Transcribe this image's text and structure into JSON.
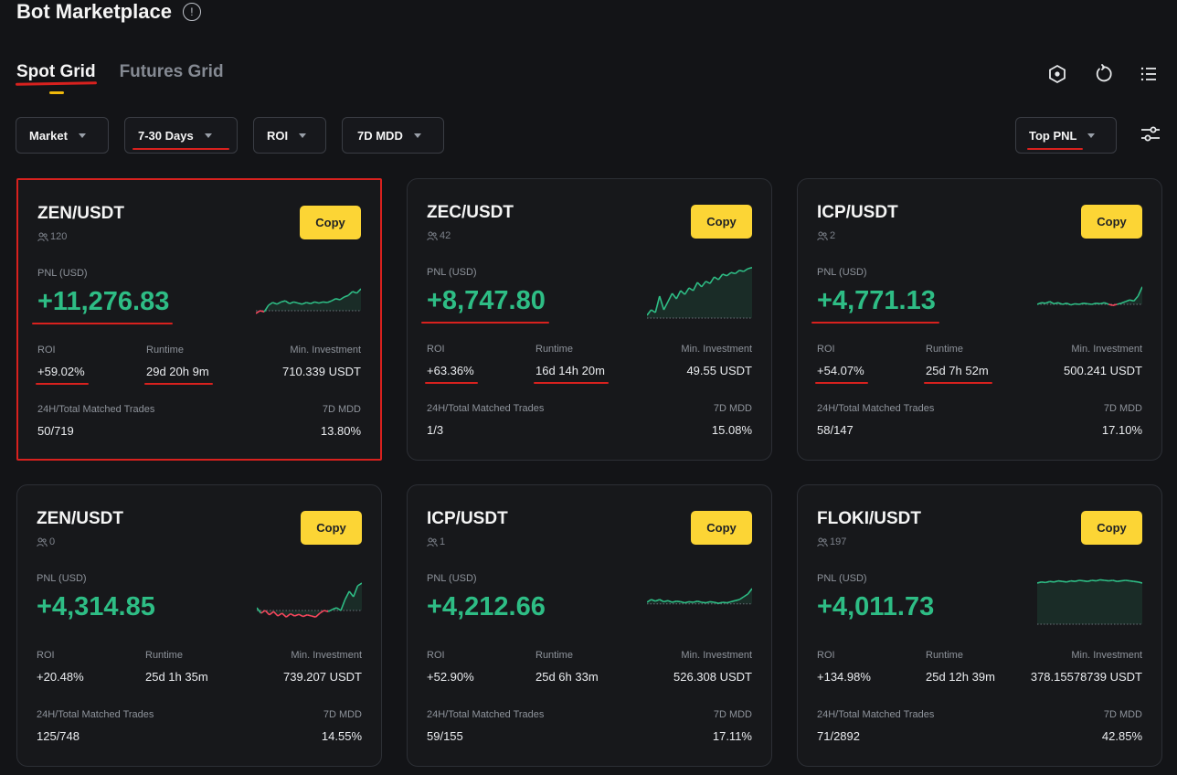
{
  "page": {
    "title": "Bot Marketplace",
    "info_glyph": "!"
  },
  "tabs": [
    {
      "label": "Spot Grid"
    },
    {
      "label": "Futures Grid"
    }
  ],
  "filters": [
    {
      "label": "Market"
    },
    {
      "label": "7-30 Days"
    },
    {
      "label": "ROI"
    },
    {
      "label": "7D MDD"
    }
  ],
  "sort": {
    "label": "Top PNL"
  },
  "labels": {
    "pnl": "PNL (USD)",
    "roi": "ROI",
    "runtime": "Runtime",
    "min_investment": "Min. Investment",
    "trades": "24H/Total Matched Trades",
    "mdd": "7D MDD",
    "copy": "Copy"
  },
  "colors": {
    "accent": "#fcd535",
    "positive": "#2ebd85",
    "negative": "#f6465d",
    "annotation": "#d8211e"
  },
  "cards": [
    {
      "pair": "ZEN/USDT",
      "followers": "120",
      "pnl": "+11,276.83",
      "roi": "+59.02%",
      "runtime": "29d 20h 9m",
      "min_investment": "710.339 USDT",
      "trades": "50/719",
      "mdd": "13.80%",
      "spark": [
        0.15,
        0.2,
        0.18,
        0.3,
        0.35,
        0.32,
        0.36,
        0.38,
        0.33,
        0.36,
        0.34,
        0.32,
        0.35,
        0.33,
        0.36,
        0.34,
        0.36,
        0.35,
        0.38,
        0.42,
        0.4,
        0.45,
        0.48,
        0.55,
        0.52,
        0.6
      ],
      "baseline": 0.2
    },
    {
      "pair": "ZEC/USDT",
      "followers": "42",
      "pnl": "+8,747.80",
      "roi": "+63.36%",
      "runtime": "16d 14h 20m",
      "min_investment": "49.55 USDT",
      "trades": "1/3",
      "mdd": "15.08%",
      "spark": [
        0.1,
        0.2,
        0.15,
        0.45,
        0.2,
        0.35,
        0.5,
        0.4,
        0.55,
        0.48,
        0.6,
        0.55,
        0.7,
        0.62,
        0.72,
        0.68,
        0.8,
        0.75,
        0.85,
        0.82,
        0.88,
        0.86,
        0.92,
        0.9,
        0.95,
        0.97
      ],
      "baseline": 0.05
    },
    {
      "pair": "ICP/USDT",
      "followers": "2",
      "pnl": "+4,771.13",
      "roi": "+54.07%",
      "runtime": "25d 7h 52m",
      "min_investment": "500.241 USDT",
      "trades": "58/147",
      "mdd": "17.10%",
      "spark": [
        0.3,
        0.33,
        0.32,
        0.35,
        0.31,
        0.33,
        0.3,
        0.32,
        0.29,
        0.31,
        0.3,
        0.32,
        0.31,
        0.3,
        0.32,
        0.31,
        0.33,
        0.3,
        0.28,
        0.3,
        0.32,
        0.35,
        0.38,
        0.36,
        0.45,
        0.62
      ],
      "baseline": 0.3
    },
    {
      "pair": "ZEN/USDT",
      "followers": "0",
      "pnl": "+4,314.85",
      "roi": "+20.48%",
      "runtime": "25d 1h 35m",
      "min_investment": "739.207 USDT",
      "trades": "125/748",
      "mdd": "14.55%",
      "spark": [
        0.35,
        0.25,
        0.3,
        0.22,
        0.28,
        0.2,
        0.25,
        0.18,
        0.24,
        0.2,
        0.23,
        0.19,
        0.22,
        0.2,
        0.18,
        0.25,
        0.3,
        0.28,
        0.32,
        0.35,
        0.3,
        0.5,
        0.65,
        0.55,
        0.75,
        0.8
      ],
      "baseline": 0.3
    },
    {
      "pair": "ICP/USDT",
      "followers": "1",
      "pnl": "+4,212.66",
      "roi": "+52.90%",
      "runtime": "25d 6h 33m",
      "min_investment": "526.308 USDT",
      "trades": "59/155",
      "mdd": "17.11%",
      "spark": [
        0.45,
        0.5,
        0.47,
        0.5,
        0.46,
        0.48,
        0.45,
        0.47,
        0.46,
        0.44,
        0.46,
        0.45,
        0.47,
        0.45,
        0.44,
        0.46,
        0.45,
        0.43,
        0.45,
        0.44,
        0.46,
        0.48,
        0.5,
        0.55,
        0.6,
        0.7
      ],
      "baseline": 0.42
    },
    {
      "pair": "FLOKI/USDT",
      "followers": "197",
      "pnl": "+4,011.73",
      "roi": "+134.98%",
      "runtime": "25d 12h 39m",
      "min_investment": "378.15578739 USDT",
      "trades": "71/2892",
      "mdd": "42.85%",
      "spark": [
        0.8,
        0.82,
        0.81,
        0.83,
        0.82,
        0.84,
        0.83,
        0.82,
        0.84,
        0.83,
        0.85,
        0.84,
        0.83,
        0.85,
        0.84,
        0.86,
        0.85,
        0.84,
        0.85,
        0.83,
        0.84,
        0.85,
        0.84,
        0.83,
        0.82,
        0.8
      ],
      "baseline": 0.05
    }
  ]
}
